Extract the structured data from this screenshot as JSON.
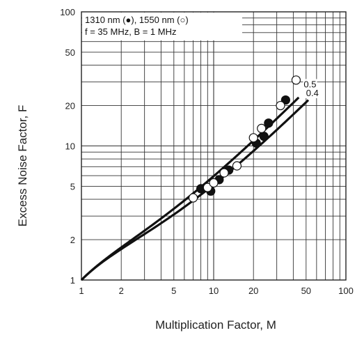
{
  "chart_data": {
    "type": "scatter",
    "xlabel": "Multiplication Factor, M",
    "ylabel": "Excess Noise Factor, F",
    "xscale": "log",
    "yscale": "log",
    "xlim": [
      1,
      100
    ],
    "ylim": [
      1,
      100
    ],
    "x_ticks": [
      1,
      2,
      5,
      10,
      20,
      50,
      100
    ],
    "y_ticks": [
      1,
      2,
      5,
      10,
      20,
      50,
      100
    ],
    "grid": true,
    "legend": {
      "placement": "top-left",
      "lines": [
        "1310 nm (●), 1550 nm (○)",
        "f = 35 MHz, B = 1 MHz"
      ]
    },
    "series": [
      {
        "name": "1310 nm",
        "marker": "filled-circle",
        "points": [
          {
            "x": 8.0,
            "y": 4.8
          },
          {
            "x": 9.5,
            "y": 4.6
          },
          {
            "x": 11.0,
            "y": 5.6
          },
          {
            "x": 13.0,
            "y": 6.6
          },
          {
            "x": 21.0,
            "y": 10.5
          },
          {
            "x": 24.0,
            "y": 11.8
          },
          {
            "x": 26.0,
            "y": 14.8
          },
          {
            "x": 35.0,
            "y": 22.0
          }
        ]
      },
      {
        "name": "1550 nm",
        "marker": "open-circle",
        "points": [
          {
            "x": 7.0,
            "y": 4.1
          },
          {
            "x": 9.0,
            "y": 4.9
          },
          {
            "x": 10.0,
            "y": 5.3
          },
          {
            "x": 12.0,
            "y": 6.3
          },
          {
            "x": 15.0,
            "y": 7.1
          },
          {
            "x": 20.0,
            "y": 11.5
          },
          {
            "x": 23.0,
            "y": 13.5
          },
          {
            "x": 32.0,
            "y": 20.0
          },
          {
            "x": 42.0,
            "y": 31.0
          }
        ]
      },
      {
        "name": "0.5",
        "type": "line",
        "model": "McIntyre k = 0.5",
        "k": 0.5,
        "x_range": [
          1,
          44
        ]
      },
      {
        "name": "0.4",
        "type": "line",
        "model": "McIntyre k = 0.4",
        "k": 0.4,
        "x_range": [
          1,
          52
        ]
      }
    ],
    "curve_labels": [
      "0.5",
      "0.4"
    ]
  }
}
